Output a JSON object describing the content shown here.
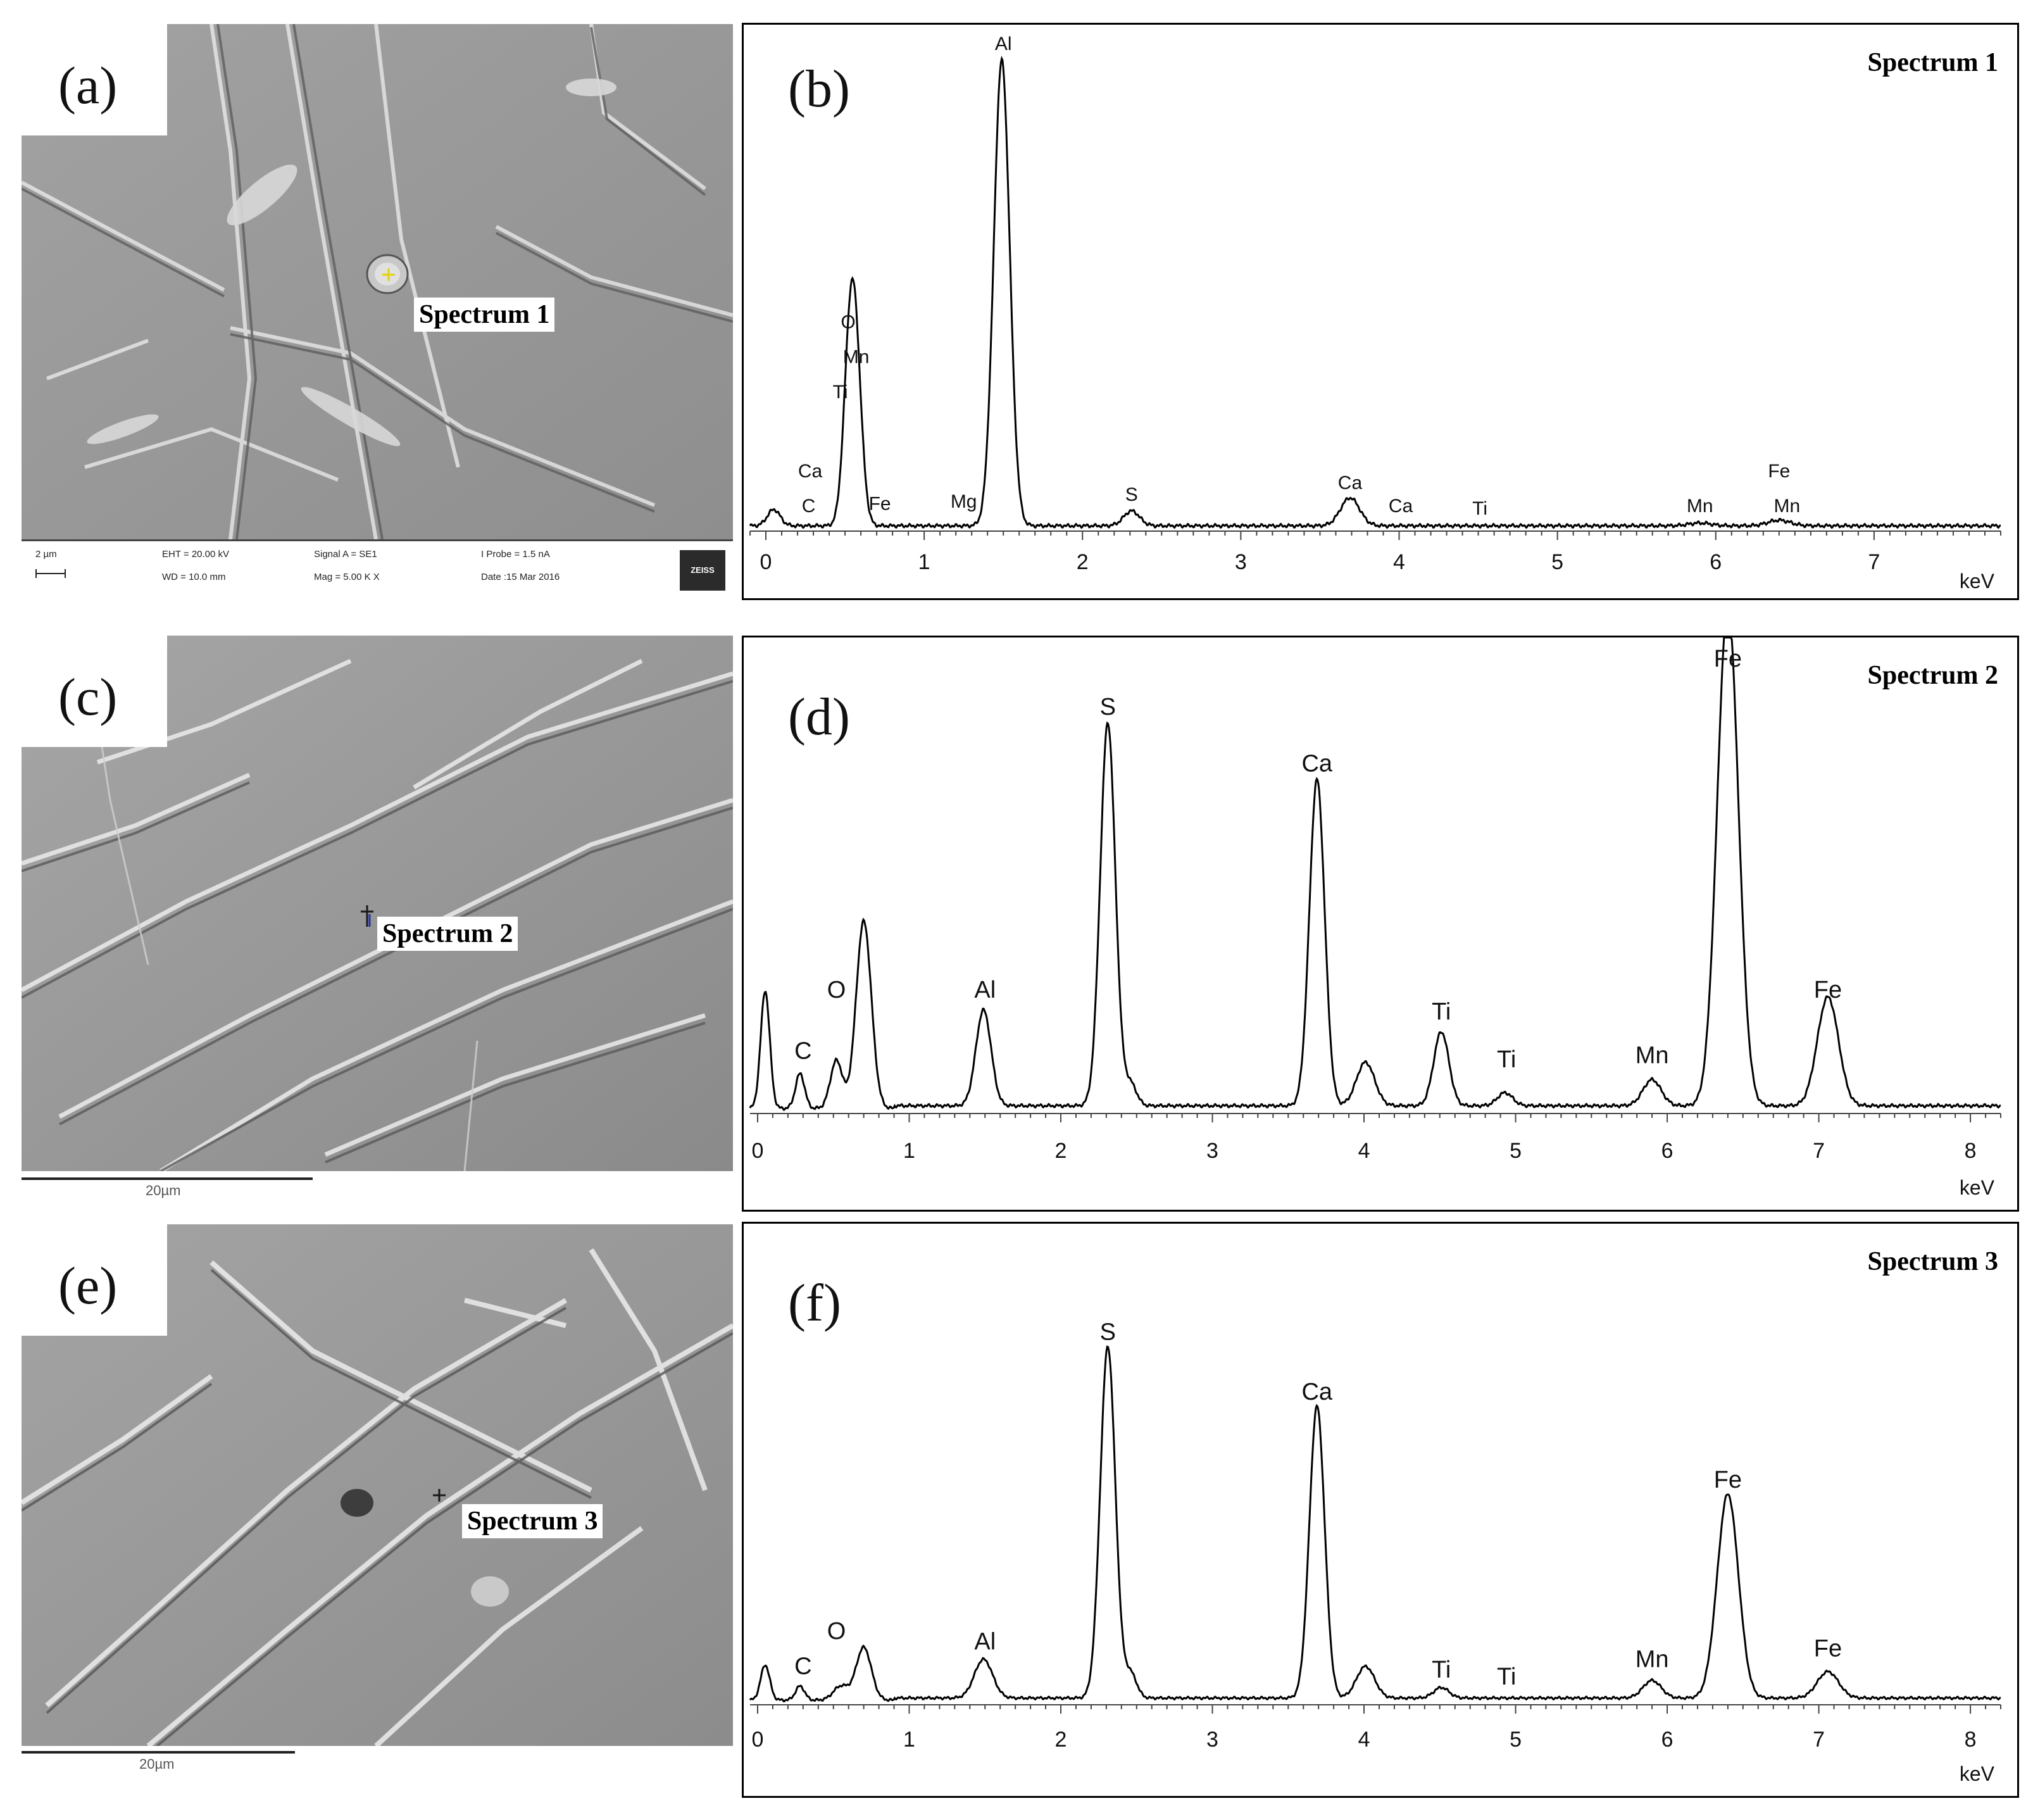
{
  "panels": {
    "a": {
      "letter": "(a)",
      "spectrum_label": "Spectrum 1"
    },
    "b": {
      "letter": "(b)"
    },
    "c": {
      "letter": "(c)",
      "spectrum_label": "Spectrum 2",
      "scale_label": "20µm"
    },
    "d": {
      "letter": "(d)"
    },
    "e": {
      "letter": "(e)",
      "spectrum_label": "Spectrum 3",
      "scale_label": "20µm"
    },
    "f": {
      "letter": "(f)"
    }
  },
  "sem_info": {
    "scale": "2 µm",
    "eht": "EHT = 20.00 kV",
    "wd": "WD = 10.0 mm",
    "signal": "Signal A = SE1",
    "mag": "Mag =   5.00 K X",
    "probe": "I Probe =    1.5 nA",
    "date": "Date :15 Mar 2016",
    "logo": "ZEISS"
  },
  "chart_data": [
    {
      "type": "line",
      "title": "Spectrum 1",
      "xlabel": "keV",
      "xlim": [
        -0.1,
        7.8
      ],
      "ylim": [
        0,
        100
      ],
      "xticks": [
        0,
        1,
        2,
        3,
        4,
        5,
        6,
        7
      ],
      "peaks": [
        {
          "x": 0.05,
          "y": 3.5,
          "w": 0.04
        },
        {
          "x": 0.53,
          "y": 33,
          "w": 0.04
        },
        {
          "x": 0.57,
          "y": 27,
          "w": 0.04
        },
        {
          "x": 1.49,
          "y": 100,
          "w": 0.05
        },
        {
          "x": 2.31,
          "y": 3.2,
          "w": 0.05
        },
        {
          "x": 3.69,
          "y": 6,
          "w": 0.06
        },
        {
          "x": 6.4,
          "y": 1.2,
          "w": 0.07
        },
        {
          "x": 5.9,
          "y": 0.6,
          "w": 0.07
        }
      ],
      "annotations": [
        {
          "text": "Al",
          "x": 1.5,
          "y": 103
        },
        {
          "text": "O",
          "x": 0.52,
          "y": 43
        },
        {
          "text": "Mn",
          "x": 0.57,
          "y": 35.5
        },
        {
          "text": "Ti",
          "x": 0.47,
          "y": 28
        },
        {
          "text": "Ca",
          "x": 0.28,
          "y": 11
        },
        {
          "text": "C",
          "x": 0.27,
          "y": 3.5
        },
        {
          "text": "Fe",
          "x": 0.72,
          "y": 4
        },
        {
          "text": "Mg",
          "x": 1.25,
          "y": 4.5
        },
        {
          "text": "S",
          "x": 2.31,
          "y": 6
        },
        {
          "text": "Ca",
          "x": 3.69,
          "y": 8.5
        },
        {
          "text": "Ca",
          "x": 4.01,
          "y": 3.5
        },
        {
          "text": "Ti",
          "x": 4.51,
          "y": 3
        },
        {
          "text": "Mn",
          "x": 5.9,
          "y": 3.5
        },
        {
          "text": "Fe",
          "x": 6.4,
          "y": 11
        },
        {
          "text": "Mn",
          "x": 6.45,
          "y": 3.5
        }
      ]
    },
    {
      "type": "line",
      "title": "Spectrum 2",
      "xlabel": "keV",
      "xlim": [
        -0.05,
        8.2
      ],
      "ylim": [
        0,
        100
      ],
      "xticks": [
        0,
        1,
        2,
        3,
        4,
        5,
        6,
        7,
        8
      ],
      "peaks": [
        {
          "x": 0.05,
          "y": 27,
          "w": 0.03
        },
        {
          "x": 0.28,
          "y": 8,
          "w": 0.03
        },
        {
          "x": 0.52,
          "y": 11,
          "w": 0.04
        },
        {
          "x": 0.7,
          "y": 43,
          "w": 0.05
        },
        {
          "x": 1.49,
          "y": 22,
          "w": 0.05
        },
        {
          "x": 2.31,
          "y": 88,
          "w": 0.05
        },
        {
          "x": 2.46,
          "y": 5,
          "w": 0.04
        },
        {
          "x": 3.69,
          "y": 75,
          "w": 0.05
        },
        {
          "x": 4.01,
          "y": 10,
          "w": 0.06
        },
        {
          "x": 4.51,
          "y": 17,
          "w": 0.05
        },
        {
          "x": 4.93,
          "y": 3,
          "w": 0.05
        },
        {
          "x": 5.9,
          "y": 6,
          "w": 0.06
        },
        {
          "x": 6.4,
          "y": 115,
          "w": 0.07
        },
        {
          "x": 7.06,
          "y": 25,
          "w": 0.07
        }
      ],
      "annotations": [
        {
          "text": "Fe",
          "x": 6.4,
          "y": 102
        },
        {
          "text": "S",
          "x": 2.31,
          "y": 91
        },
        {
          "text": "Ca",
          "x": 3.69,
          "y": 78
        },
        {
          "text": "Al",
          "x": 1.5,
          "y": 26
        },
        {
          "text": "O",
          "x": 0.52,
          "y": 26
        },
        {
          "text": "C",
          "x": 0.3,
          "y": 12
        },
        {
          "text": "Ti",
          "x": 4.51,
          "y": 21
        },
        {
          "text": "Ti",
          "x": 4.94,
          "y": 10
        },
        {
          "text": "Mn",
          "x": 5.9,
          "y": 11
        },
        {
          "text": "Fe",
          "x": 7.06,
          "y": 26
        }
      ]
    },
    {
      "type": "line",
      "title": "Spectrum 3",
      "xlabel": "keV",
      "xlim": [
        -0.05,
        8.2
      ],
      "ylim": [
        0,
        100
      ],
      "xticks": [
        0,
        1,
        2,
        3,
        4,
        5,
        6,
        7,
        8
      ],
      "peaks": [
        {
          "x": 0.05,
          "y": 10,
          "w": 0.03
        },
        {
          "x": 0.28,
          "y": 4,
          "w": 0.03
        },
        {
          "x": 0.55,
          "y": 4,
          "w": 0.05
        },
        {
          "x": 0.7,
          "y": 15,
          "w": 0.05
        },
        {
          "x": 1.49,
          "y": 11,
          "w": 0.06
        },
        {
          "x": 2.31,
          "y": 100,
          "w": 0.05
        },
        {
          "x": 2.46,
          "y": 7,
          "w": 0.04
        },
        {
          "x": 3.69,
          "y": 83,
          "w": 0.05
        },
        {
          "x": 4.01,
          "y": 9,
          "w": 0.06
        },
        {
          "x": 4.51,
          "y": 3,
          "w": 0.05
        },
        {
          "x": 5.9,
          "y": 5,
          "w": 0.06
        },
        {
          "x": 6.4,
          "y": 58,
          "w": 0.07
        },
        {
          "x": 7.06,
          "y": 7.5,
          "w": 0.07
        }
      ],
      "annotations": [
        {
          "text": "S",
          "x": 2.31,
          "y": 103
        },
        {
          "text": "Ca",
          "x": 3.69,
          "y": 86
        },
        {
          "text": "Fe",
          "x": 6.4,
          "y": 61
        },
        {
          "text": "Al",
          "x": 1.5,
          "y": 15
        },
        {
          "text": "O",
          "x": 0.52,
          "y": 18
        },
        {
          "text": "C",
          "x": 0.3,
          "y": 8
        },
        {
          "text": "Ti",
          "x": 4.51,
          "y": 7
        },
        {
          "text": "Ti",
          "x": 4.94,
          "y": 5
        },
        {
          "text": "Mn",
          "x": 5.9,
          "y": 10
        },
        {
          "text": "Fe",
          "x": 7.06,
          "y": 13
        }
      ]
    }
  ]
}
